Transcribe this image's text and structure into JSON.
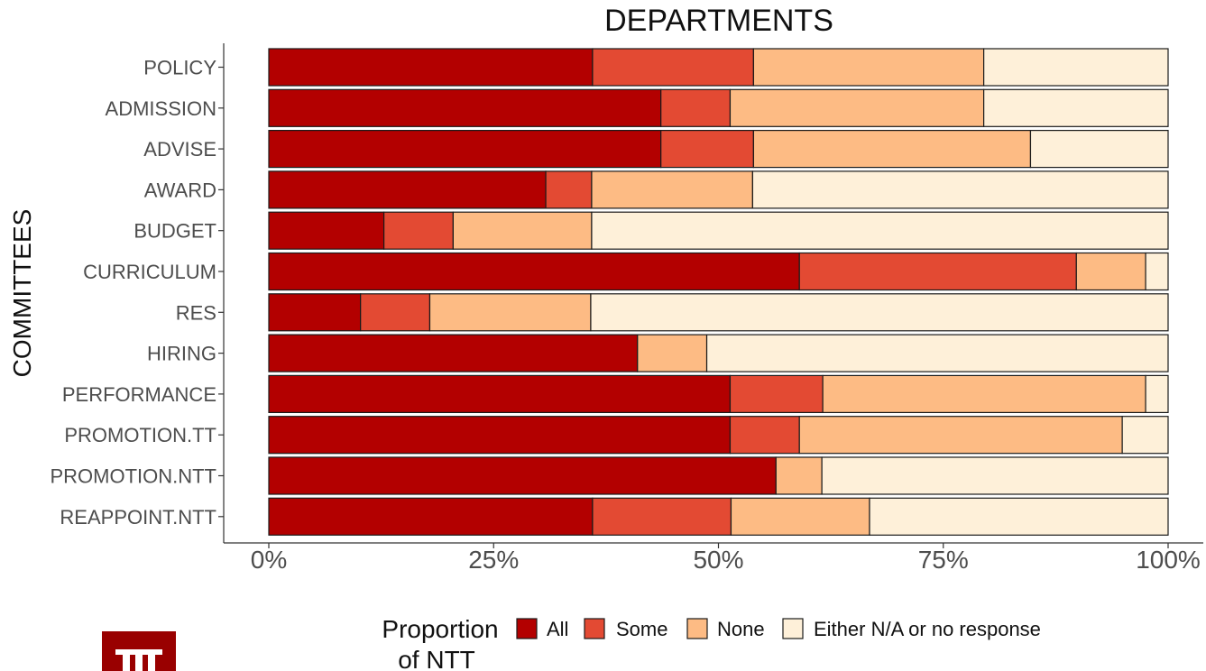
{
  "chart_data": {
    "type": "bar",
    "orientation": "horizontal",
    "stacked": true,
    "title": "DEPARTMENTS",
    "xlabel": "",
    "ylabel": "COMMITTEES",
    "xlim": [
      0,
      100
    ],
    "x_ticks": [
      "0%",
      "25%",
      "50%",
      "75%",
      "100%"
    ],
    "x_tick_values": [
      0,
      25,
      50,
      75,
      100
    ],
    "grid": false,
    "legend_position": "bottom",
    "legend_title": [
      "Proportion",
      "of NTT"
    ],
    "categories": [
      "POLICY",
      "ADMISSION",
      "ADVISE",
      "AWARD",
      "BUDGET",
      "CURRICULUM",
      "RES",
      "HIRING",
      "PERFORMANCE",
      "PROMOTION.TT",
      "PROMOTION.NTT",
      "REAPPOINT.NTT"
    ],
    "series": [
      {
        "name": "All",
        "color": "#B30000",
        "values": [
          36,
          43.6,
          43.6,
          30.8,
          12.8,
          59,
          10.2,
          41,
          51.3,
          51.3,
          56.4,
          36
        ]
      },
      {
        "name": "Some",
        "color": "#E34A33",
        "values": [
          17.9,
          7.7,
          10.3,
          5.1,
          7.7,
          30.8,
          7.7,
          0,
          10.3,
          7.7,
          0,
          15.4
        ]
      },
      {
        "name": "None",
        "color": "#FDBB84",
        "values": [
          25.6,
          28.2,
          30.8,
          17.9,
          15.4,
          7.7,
          17.9,
          7.7,
          35.9,
          35.9,
          5.1,
          15.4
        ]
      },
      {
        "name": "Either N/A or no response",
        "color": "#FEF0D9",
        "values": [
          20.5,
          20.5,
          15.3,
          46.2,
          64.1,
          2.5,
          64.2,
          51.3,
          2.5,
          5.1,
          38.5,
          33.2
        ]
      }
    ]
  },
  "logo": {
    "name": "trident-logo",
    "color": "#990000"
  }
}
